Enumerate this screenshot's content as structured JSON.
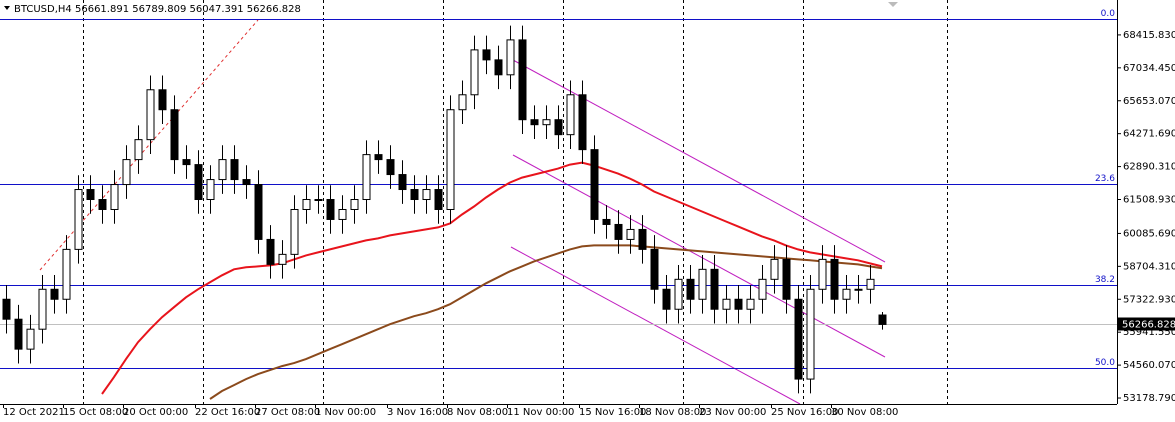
{
  "header": {
    "symbol": "BTCUSD,H4"
  },
  "chart_data": {
    "type": "candlestick",
    "categories": [
      "12 Oct 2021",
      null,
      null,
      null,
      null,
      "15 Oct 08:00",
      null,
      null,
      null,
      null,
      "20 Oct 00:00",
      null,
      null,
      null,
      null,
      null,
      "22 Oct 16:00",
      null,
      null,
      null,
      null,
      "27 Oct 08:00",
      null,
      null,
      null,
      null,
      "1 Nov 00:00",
      null,
      null,
      null,
      null,
      null,
      "3 Nov 16:00",
      null,
      null,
      null,
      null,
      "8 Nov 08:00",
      null,
      null,
      null,
      null,
      "11 Nov 00:00",
      null,
      null,
      null,
      null,
      null,
      "15 Nov 16:00",
      null,
      null,
      null,
      null,
      "18 Nov 08:00",
      null,
      null,
      null,
      null,
      "23 Nov 00:00",
      null,
      null,
      null,
      null,
      null,
      "25 Nov 16:00",
      null,
      null,
      null,
      null,
      "30 Nov 08:00",
      null,
      null,
      null,
      null
    ],
    "candles": [
      [
        57323,
        57923,
        55886,
        56486
      ],
      [
        56486,
        57086,
        54630,
        55230
      ],
      [
        55230,
        56667,
        54630,
        56067
      ],
      [
        56067,
        58342,
        55467,
        57742
      ],
      [
        57742,
        58342,
        56723,
        57323
      ],
      [
        57323,
        60016,
        56723,
        59416
      ],
      [
        59416,
        62528,
        58816,
        61928
      ],
      [
        61928,
        62528,
        60909,
        61509
      ],
      [
        61509,
        62109,
        60490,
        61090
      ],
      [
        61090,
        62737,
        60490,
        62137
      ],
      [
        62137,
        63784,
        61537,
        63184
      ],
      [
        63184,
        64621,
        62584,
        64021
      ],
      [
        64021,
        66714,
        63421,
        66114
      ],
      [
        66114,
        66714,
        64677,
        65277
      ],
      [
        65277,
        65877,
        62584,
        63184
      ],
      [
        63184,
        63784,
        62374,
        62974
      ],
      [
        62974,
        63574,
        60909,
        61509
      ],
      [
        61509,
        62946,
        60909,
        62346
      ],
      [
        62346,
        63784,
        61746,
        63184
      ],
      [
        63184,
        63784,
        61746,
        62346
      ],
      [
        62346,
        62946,
        61537,
        62137
      ],
      [
        62137,
        62737,
        59234,
        59834
      ],
      [
        59834,
        60434,
        58188,
        58788
      ],
      [
        58788,
        59807,
        58188,
        59207
      ],
      [
        59207,
        61690,
        58607,
        61090
      ],
      [
        61090,
        62109,
        60490,
        61509
      ],
      [
        61509,
        62109,
        60909,
        61509
      ],
      [
        61509,
        62109,
        60072,
        60672
      ],
      [
        60672,
        61690,
        60072,
        61090
      ],
      [
        61090,
        62109,
        60490,
        61509
      ],
      [
        61509,
        63993,
        60909,
        63393
      ],
      [
        63393,
        63993,
        62584,
        63184
      ],
      [
        63184,
        63784,
        61956,
        62556
      ],
      [
        62556,
        63156,
        61328,
        61928
      ],
      [
        61928,
        62528,
        60909,
        61509
      ],
      [
        61509,
        62528,
        60909,
        61928
      ],
      [
        61928,
        62528,
        60490,
        61090
      ],
      [
        61090,
        65877,
        60490,
        65277
      ],
      [
        65277,
        66504,
        64677,
        65904
      ],
      [
        65904,
        68388,
        65304,
        67788
      ],
      [
        67788,
        68388,
        66769,
        67369
      ],
      [
        67369,
        67969,
        66142,
        66742
      ],
      [
        66742,
        68807,
        66142,
        68207
      ],
      [
        68207,
        68807,
        64258,
        64858
      ],
      [
        64858,
        65458,
        64049,
        64649
      ],
      [
        64649,
        65458,
        64049,
        64858
      ],
      [
        64858,
        65458,
        63630,
        64230
      ],
      [
        64230,
        66504,
        63630,
        65904
      ],
      [
        65904,
        66504,
        63002,
        63602
      ],
      [
        63602,
        64202,
        60072,
        60672
      ],
      [
        60672,
        61272,
        59862,
        60462
      ],
      [
        60462,
        61062,
        59234,
        59834
      ],
      [
        59834,
        60853,
        59234,
        60253
      ],
      [
        60253,
        60853,
        58816,
        59416
      ],
      [
        59416,
        60016,
        57142,
        57742
      ],
      [
        57742,
        58342,
        56304,
        56904
      ],
      [
        56904,
        58760,
        56304,
        58160
      ],
      [
        58160,
        58760,
        56723,
        57323
      ],
      [
        57323,
        59179,
        56723,
        58579
      ],
      [
        58579,
        59179,
        56304,
        56904
      ],
      [
        56904,
        57923,
        56304,
        57323
      ],
      [
        57323,
        57923,
        56304,
        56904
      ],
      [
        56904,
        57923,
        56304,
        57323
      ],
      [
        57323,
        58760,
        56723,
        58160
      ],
      [
        58160,
        59597,
        57560,
        58997
      ],
      [
        58997,
        59597,
        56723,
        57323
      ],
      [
        57323,
        57923,
        53374,
        53974
      ],
      [
        53974,
        58342,
        53374,
        57742
      ],
      [
        57742,
        59597,
        57142,
        58997
      ],
      [
        58997,
        59597,
        56723,
        57323
      ],
      [
        57323,
        58342,
        56723,
        57742
      ],
      [
        57742,
        58342,
        57142,
        57742
      ],
      [
        57742,
        58760,
        57142,
        58160
      ],
      [
        56661.891,
        56789.809,
        56047.391,
        56266.828
      ]
    ],
    "up_color": "#ffffff",
    "down_color": "#000000",
    "overlays": [
      {
        "color": "#e8141c",
        "values": [
          null,
          null,
          null,
          null,
          null,
          null,
          null,
          null,
          53346,
          54058,
          54811,
          55523,
          56067,
          56570,
          56988,
          57407,
          57742,
          58035,
          58328,
          58579,
          58663,
          58704,
          58746,
          58830,
          58997,
          59165,
          59290,
          59416,
          59542,
          59667,
          59793,
          59876,
          60002,
          60086,
          60169,
          60253,
          60337,
          60504,
          60881,
          61216,
          61593,
          61928,
          62221,
          62430,
          62555,
          62681,
          62807,
          62974,
          63058,
          62932,
          62765,
          62597,
          62388,
          62137,
          61844,
          61635,
          61425,
          61216,
          61007,
          60797,
          60588,
          60379,
          60169,
          59960,
          59793,
          59583,
          59416,
          59290,
          59207,
          59123,
          59039,
          58956,
          58830,
          58704
        ]
      },
      {
        "color": "#8b4a1c",
        "values": [
          null,
          null,
          null,
          null,
          null,
          null,
          null,
          null,
          null,
          null,
          null,
          null,
          null,
          null,
          null,
          null,
          null,
          53137,
          53472,
          53723,
          53974,
          54183,
          54351,
          54518,
          54644,
          54811,
          55021,
          55230,
          55439,
          55649,
          55858,
          56067,
          56276,
          56444,
          56611,
          56737,
          56904,
          57114,
          57407,
          57700,
          57993,
          58244,
          58495,
          58704,
          58914,
          59081,
          59249,
          59416,
          59542,
          59583,
          59583,
          59583,
          59583,
          59542,
          59500,
          59458,
          59416,
          59374,
          59332,
          59290,
          59249,
          59207,
          59165,
          59123,
          59081,
          59039,
          58997,
          58956,
          58914,
          58872,
          58830,
          58788,
          58704,
          58621
        ]
      }
    ],
    "levels": [
      {
        "label": "0.0",
        "value": 69086
      },
      {
        "label": "23.6",
        "value": 62179
      },
      {
        "label": "38.2",
        "value": 57909
      },
      {
        "label": "50.0",
        "value": 54435
      }
    ],
    "level_color": "#1010c8",
    "ylim": [
      52928,
      69881
    ],
    "yticks": [
      {
        "value": 68415.83,
        "label": "68415.830"
      },
      {
        "value": 67034.45,
        "label": "67034.450"
      },
      {
        "value": 65653.07,
        "label": "65653.070"
      },
      {
        "value": 64271.69,
        "label": "64271.690"
      },
      {
        "value": 62890.31,
        "label": "62890.310"
      },
      {
        "value": 61508.93,
        "label": "61508.930"
      },
      {
        "value": 60085.69,
        "label": "60085.690"
      },
      {
        "value": 58704.31,
        "label": "58704.310"
      },
      {
        "value": 57322.93,
        "label": "57322.930"
      },
      {
        "value": 55941.55,
        "label": "55941.550"
      },
      {
        "value": 54560.07,
        "label": "54560.070"
      },
      {
        "value": 53178.79,
        "label": "53178.790"
      }
    ]
  }
}
